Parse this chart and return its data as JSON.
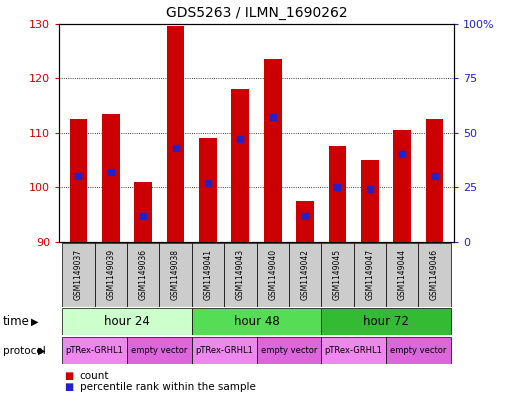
{
  "title": "GDS5263 / ILMN_1690262",
  "samples": [
    "GSM1149037",
    "GSM1149039",
    "GSM1149036",
    "GSM1149038",
    "GSM1149041",
    "GSM1149043",
    "GSM1149040",
    "GSM1149042",
    "GSM1149045",
    "GSM1149047",
    "GSM1149044",
    "GSM1149046"
  ],
  "counts": [
    112.5,
    113.5,
    101.0,
    129.5,
    109.0,
    118.0,
    123.5,
    97.5,
    107.5,
    105.0,
    110.5,
    112.5
  ],
  "percentile_ranks": [
    30,
    32,
    12,
    43,
    27,
    47,
    57,
    12,
    25,
    24,
    40,
    30
  ],
  "ylim_left": [
    90,
    130
  ],
  "ylim_right": [
    0,
    100
  ],
  "yticks_left": [
    90,
    100,
    110,
    120,
    130
  ],
  "yticks_right": [
    0,
    25,
    50,
    75,
    100
  ],
  "ytick_right_labels": [
    "0",
    "25",
    "50",
    "75",
    "100%"
  ],
  "bar_color": "#cc0000",
  "dot_color": "#2222cc",
  "bar_width": 0.55,
  "time_groups": [
    {
      "label": "hour 24",
      "start": 0,
      "end": 3,
      "color": "#ccffcc"
    },
    {
      "label": "hour 48",
      "start": 4,
      "end": 7,
      "color": "#55dd55"
    },
    {
      "label": "hour 72",
      "start": 8,
      "end": 11,
      "color": "#33bb33"
    }
  ],
  "protocol_groups": [
    {
      "label": "pTRex-GRHL1",
      "start": 0,
      "end": 1,
      "color": "#ee88ee"
    },
    {
      "label": "empty vector",
      "start": 2,
      "end": 3,
      "color": "#dd66dd"
    },
    {
      "label": "pTRex-GRHL1",
      "start": 4,
      "end": 5,
      "color": "#ee88ee"
    },
    {
      "label": "empty vector",
      "start": 6,
      "end": 7,
      "color": "#dd66dd"
    },
    {
      "label": "pTRex-GRHL1",
      "start": 8,
      "end": 9,
      "color": "#ee88ee"
    },
    {
      "label": "empty vector",
      "start": 10,
      "end": 11,
      "color": "#dd66dd"
    }
  ],
  "left_axis_color": "#cc0000",
  "right_axis_color": "#2222cc",
  "sample_box_color": "#cccccc",
  "fig_width": 5.13,
  "fig_height": 3.93,
  "dpi": 100
}
